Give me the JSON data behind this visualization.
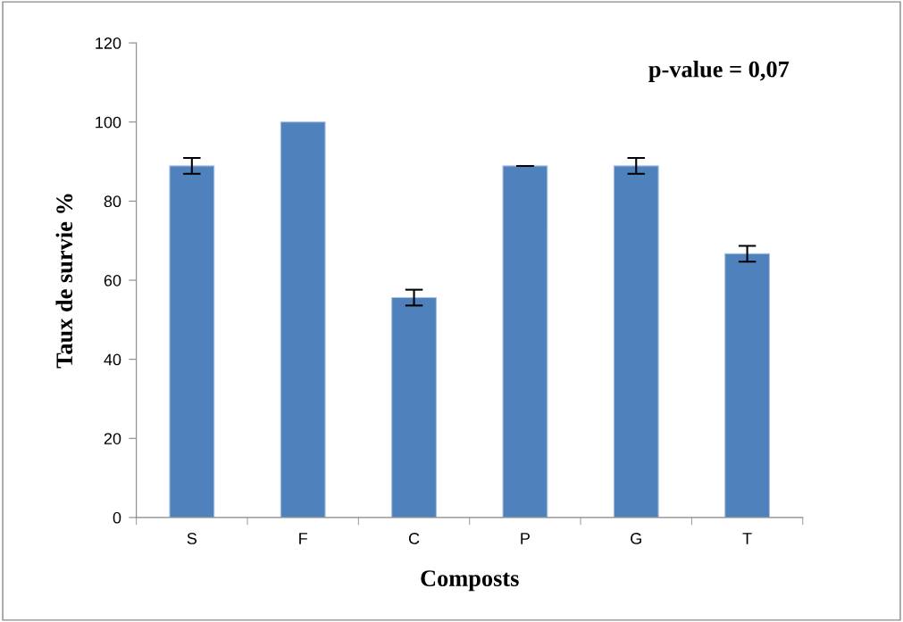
{
  "chart_data": {
    "type": "bar",
    "xlabel": "Composts",
    "ylabel": "Taux de survie %",
    "categories": [
      "S",
      "F",
      "C",
      "P",
      "G",
      "T"
    ],
    "values": [
      88.9,
      100,
      55.6,
      88.9,
      88.9,
      66.7
    ],
    "errors": [
      2,
      null,
      2,
      0,
      2,
      2
    ],
    "color": "#4f81bd",
    "ylim": [
      0,
      120
    ],
    "yticks": [
      0,
      20,
      40,
      60,
      80,
      100,
      120
    ],
    "grid": false,
    "legend": false,
    "annotations": [
      "p-value = 0,07"
    ]
  }
}
